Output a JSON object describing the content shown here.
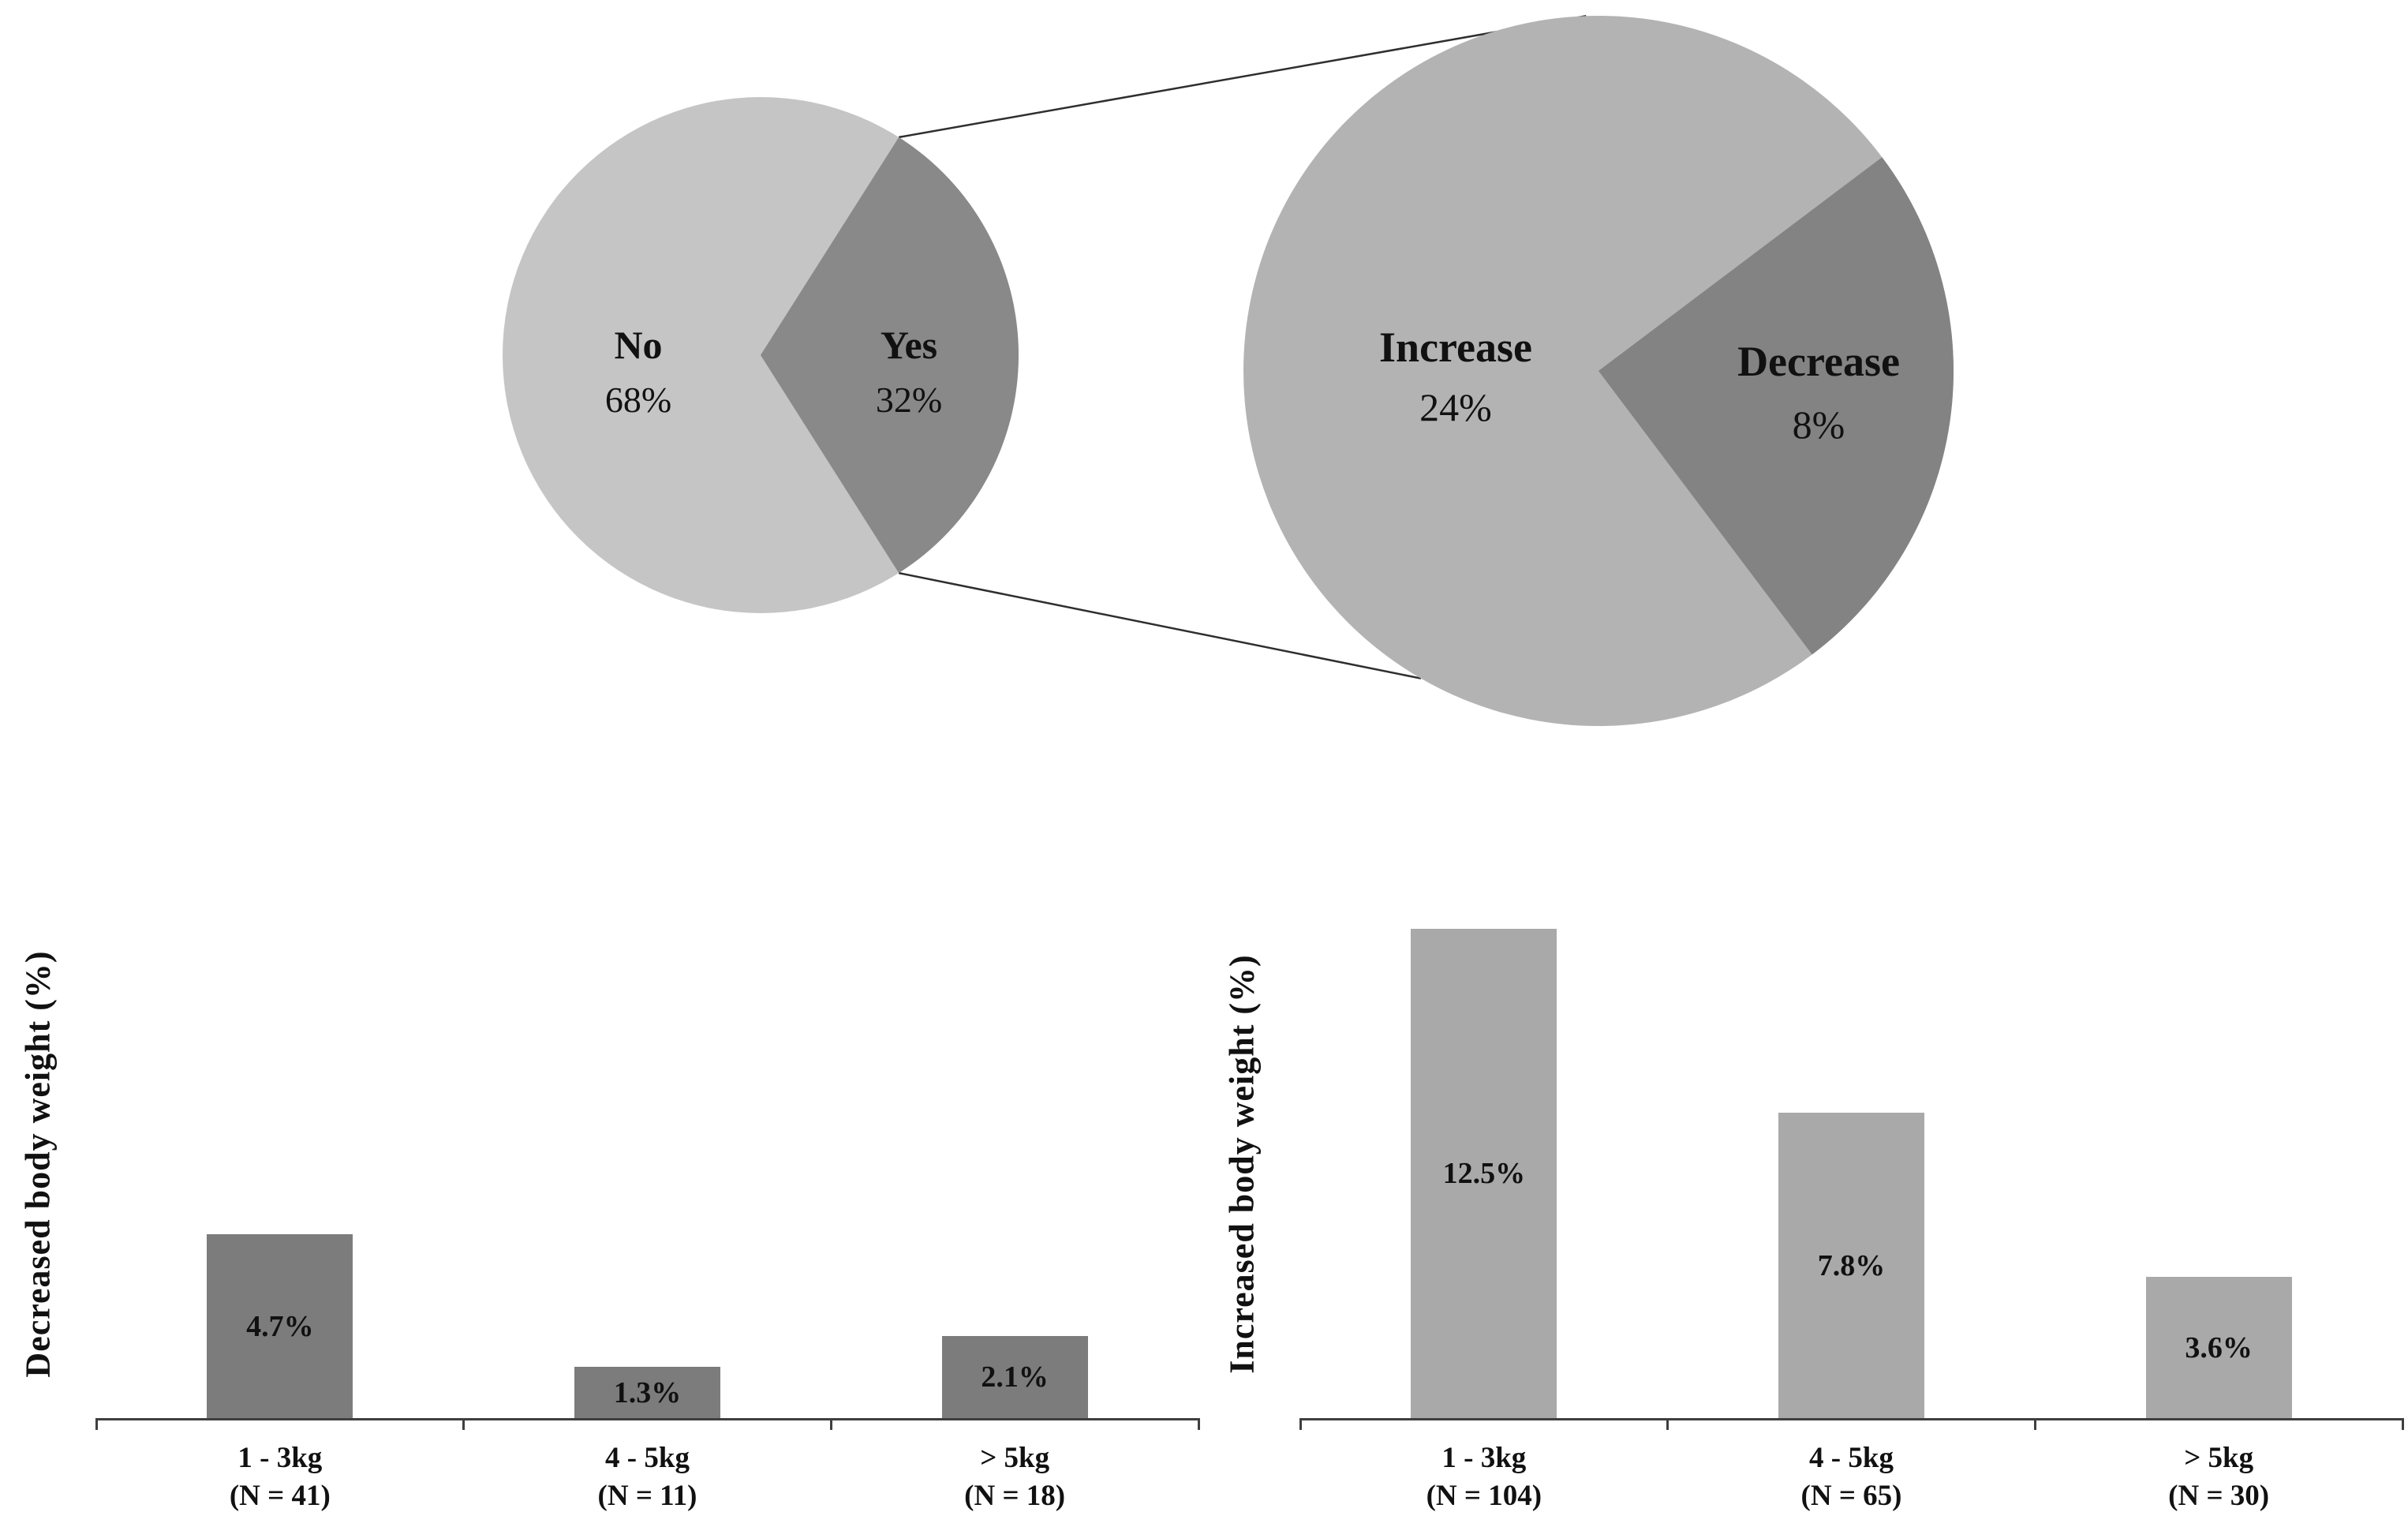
{
  "chart_data": [
    {
      "type": "pie",
      "name": "weight-change-overview",
      "slices": [
        {
          "label": "No",
          "value": 68,
          "pct_label": "68%",
          "color": "#c5c5c5"
        },
        {
          "label": "Yes",
          "value": 32,
          "pct_label": "32%",
          "color": "#898989"
        }
      ],
      "legend_position": "inside"
    },
    {
      "type": "pie",
      "name": "yes-breakout",
      "subset_of": "Yes",
      "slices": [
        {
          "label": "Increase",
          "value": 24,
          "pct_label": "24%",
          "color": "#b3b3b3"
        },
        {
          "label": "Decrease",
          "value": 8,
          "pct_label": "8%",
          "color": "#838383"
        }
      ],
      "legend_position": "inside"
    },
    {
      "type": "bar",
      "name": "decreased-weight-bars",
      "ylabel": "Decreased body weight (%)",
      "xlabel": "",
      "ylim": [
        0,
        13
      ],
      "grid": false,
      "bar_color": "#7c7c7c",
      "categories": [
        "1 - 3kg",
        "4 - 5kg",
        "> 5kg"
      ],
      "n_labels": [
        "(N = 41)",
        "(N = 11)",
        "(N = 18)"
      ],
      "values": [
        4.7,
        1.3,
        2.1
      ],
      "value_labels": [
        "4.7%",
        "1.3%",
        "2.1%"
      ]
    },
    {
      "type": "bar",
      "name": "increased-weight-bars",
      "ylabel": "Increased body weight (%)",
      "xlabel": "",
      "ylim": [
        0,
        13
      ],
      "grid": false,
      "bar_color": "#a9a9a9",
      "categories": [
        "1 - 3kg",
        "4 - 5kg",
        "> 5kg"
      ],
      "n_labels": [
        "(N = 104)",
        "(N = 65)",
        "(N = 30)"
      ],
      "values": [
        12.5,
        7.8,
        3.6
      ],
      "value_labels": [
        "12.5%",
        "7.8%",
        "3.6%"
      ]
    }
  ],
  "styles": {
    "connector_color": "#2e2e2e",
    "axis_color": "#3f3f3f",
    "background": "#ffffff"
  }
}
